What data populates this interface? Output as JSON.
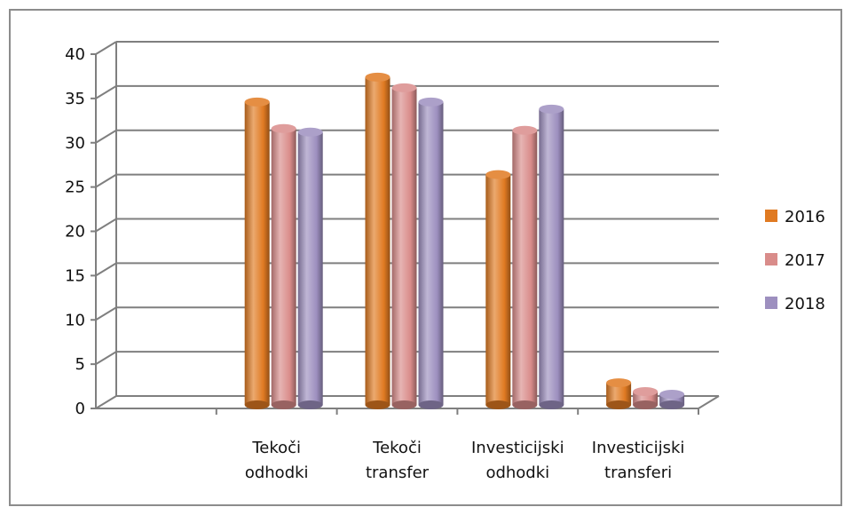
{
  "chart_data": {
    "type": "bar",
    "categories": [
      [
        "Tekoči",
        "odhodki"
      ],
      [
        "Tekoči",
        "transfer"
      ],
      [
        "Investicijski",
        "odhodki"
      ],
      [
        "Investicijski",
        "transferi"
      ]
    ],
    "series": [
      {
        "name": "2016",
        "color": "#e07a22",
        "values": [
          34.2,
          37.0,
          26.0,
          2.5
        ]
      },
      {
        "name": "2017",
        "color": "#d98c8a",
        "values": [
          31.2,
          35.8,
          31.0,
          1.5
        ]
      },
      {
        "name": "2018",
        "color": "#9d8fbf",
        "values": [
          30.8,
          34.2,
          33.4,
          1.2
        ]
      }
    ],
    "ylim": [
      0,
      40
    ],
    "yticks": [
      "0",
      "5",
      "10",
      "15",
      "20",
      "25",
      "30",
      "35",
      "40"
    ],
    "grid": true,
    "legend_position": "right",
    "title": "",
    "xlabel": "",
    "ylabel": ""
  }
}
